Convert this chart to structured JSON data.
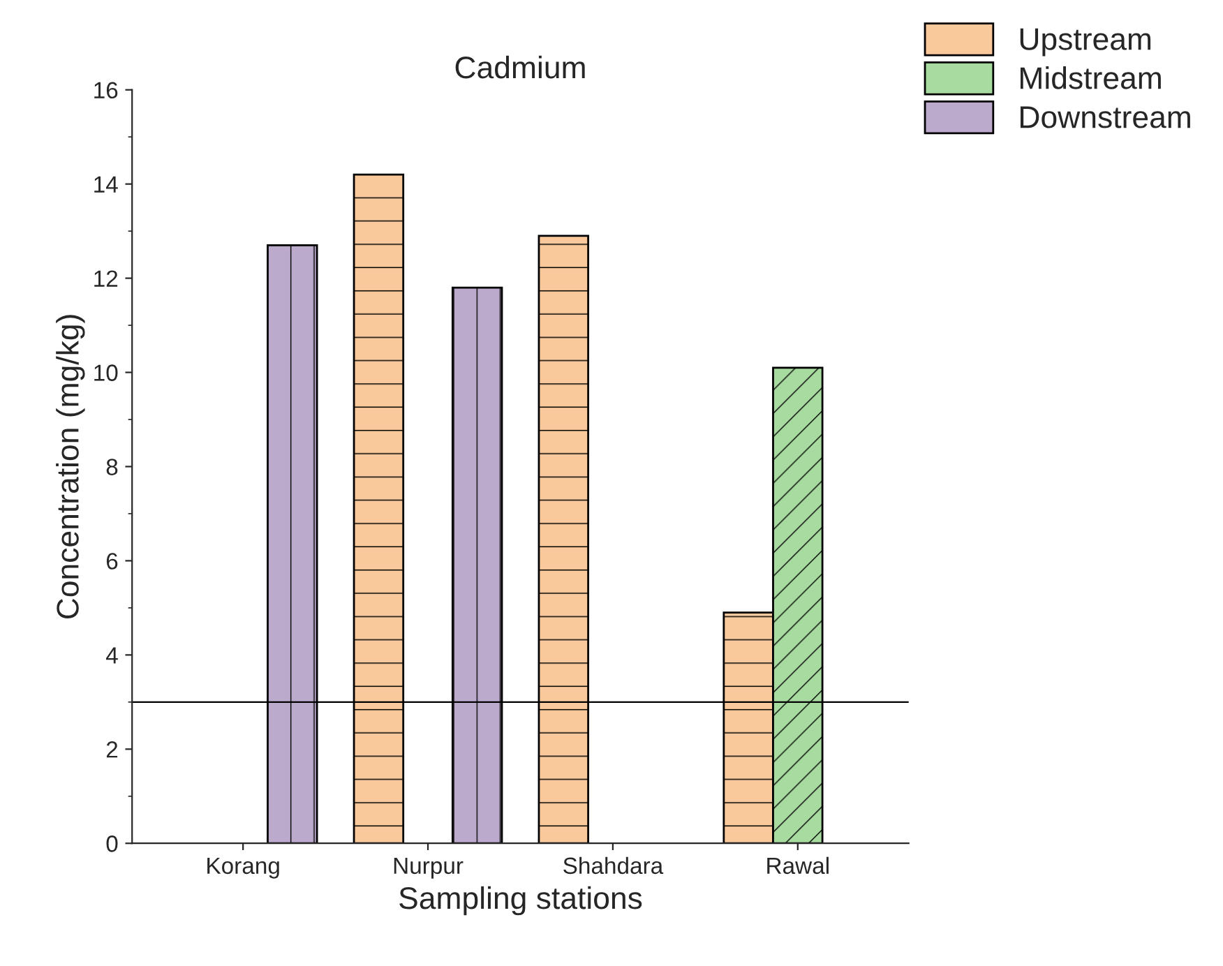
{
  "chart_data": {
    "type": "bar",
    "title": "Cadmium",
    "xlabel": "Sampling stations",
    "ylabel": "Concentration (mg/kg)",
    "categories": [
      "Korang",
      "Nurpur",
      "Shahdara",
      "Rawal"
    ],
    "series": [
      {
        "name": "Upstream",
        "color": "#f9c89b",
        "values": [
          null,
          14.2,
          12.9,
          4.9
        ]
      },
      {
        "name": "Midstream",
        "color": "#a8dba0",
        "values": [
          null,
          null,
          null,
          10.1
        ]
      },
      {
        "name": "Downstream",
        "color": "#bcaacd",
        "values": [
          12.7,
          11.8,
          null,
          null
        ]
      }
    ],
    "ylim": [
      0,
      16
    ],
    "yticks": [
      0,
      2,
      4,
      6,
      8,
      10,
      12,
      14,
      16
    ],
    "grid": false,
    "legend": "top right",
    "ref_lines": [
      {
        "axis": "y",
        "value": 3,
        "color": "#000000"
      }
    ]
  }
}
